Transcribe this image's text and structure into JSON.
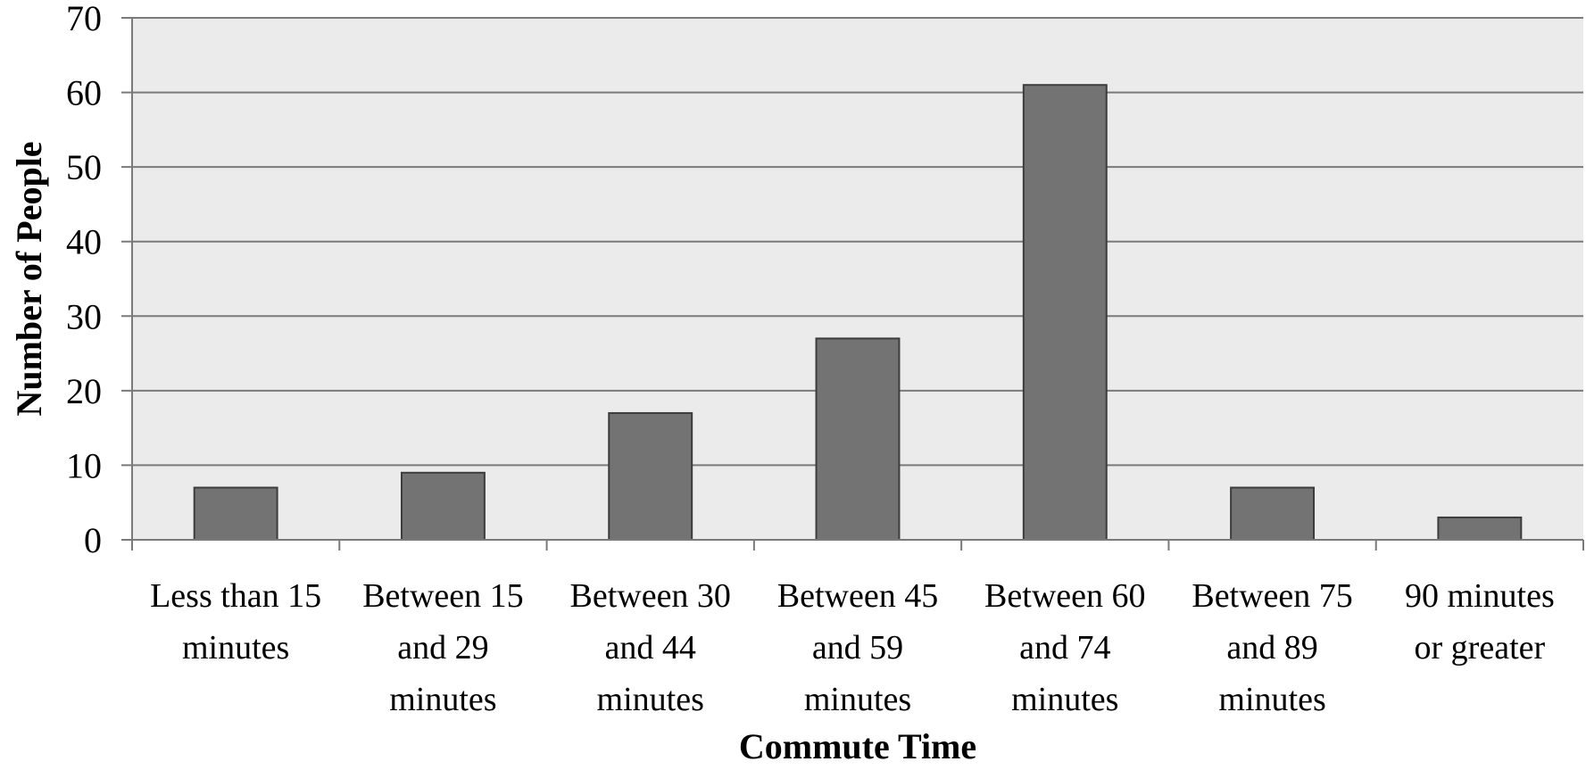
{
  "chart_data": {
    "type": "bar",
    "categories": [
      [
        "Less than 15",
        "minutes"
      ],
      [
        "Between 15",
        "and 29",
        "minutes"
      ],
      [
        "Between 30",
        "and 44",
        "minutes"
      ],
      [
        "Between 45",
        "and 59",
        "minutes"
      ],
      [
        "Between 60",
        "and 74",
        "minutes"
      ],
      [
        "Between 75",
        "and 89",
        "minutes"
      ],
      [
        "90 minutes",
        "or greater"
      ]
    ],
    "values": [
      7,
      9,
      17,
      27,
      61,
      7,
      3
    ],
    "title": "",
    "xlabel": "Commute Time",
    "ylabel": "Number of People",
    "ylim": [
      0,
      70
    ],
    "yticks": [
      0,
      10,
      20,
      30,
      40,
      50,
      60,
      70
    ],
    "grid": true,
    "legend": "none",
    "colors": {
      "bar_fill": "#737373",
      "bar_stroke": "#3c3c3c",
      "plot_background": "#ebebeb",
      "gridline": "#7a7a7a",
      "axis": "#7a7a7a"
    }
  }
}
